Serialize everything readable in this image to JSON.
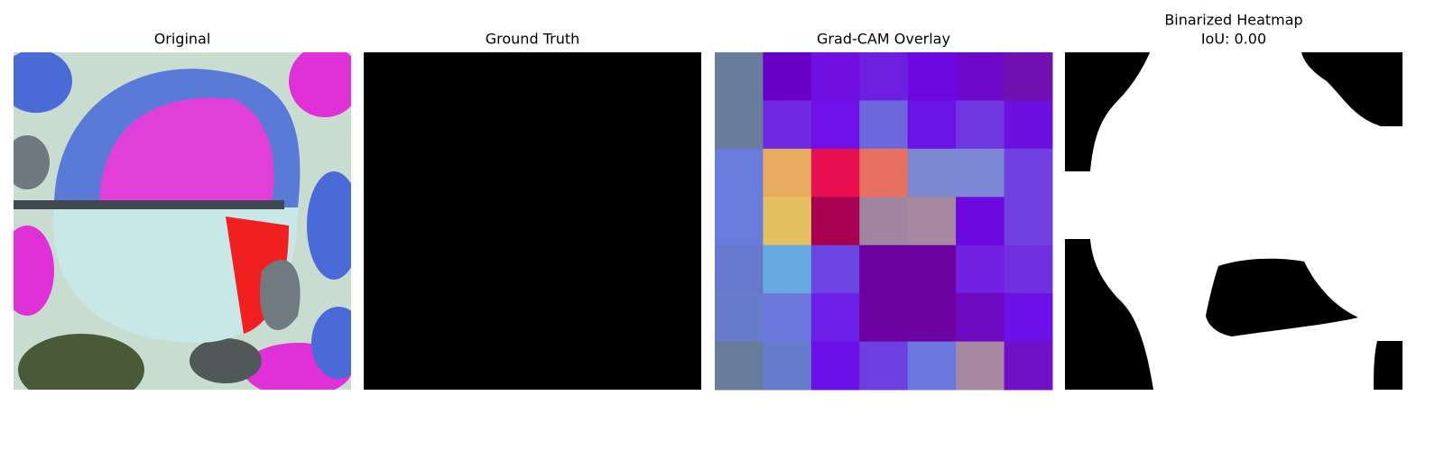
{
  "panels": [
    {
      "title": "Original"
    },
    {
      "title": "Ground Truth"
    },
    {
      "title": "Grad-CAM Overlay"
    },
    {
      "title": "Binarized Heatmap",
      "subtitle": "IoU: 0.00"
    }
  ]
}
